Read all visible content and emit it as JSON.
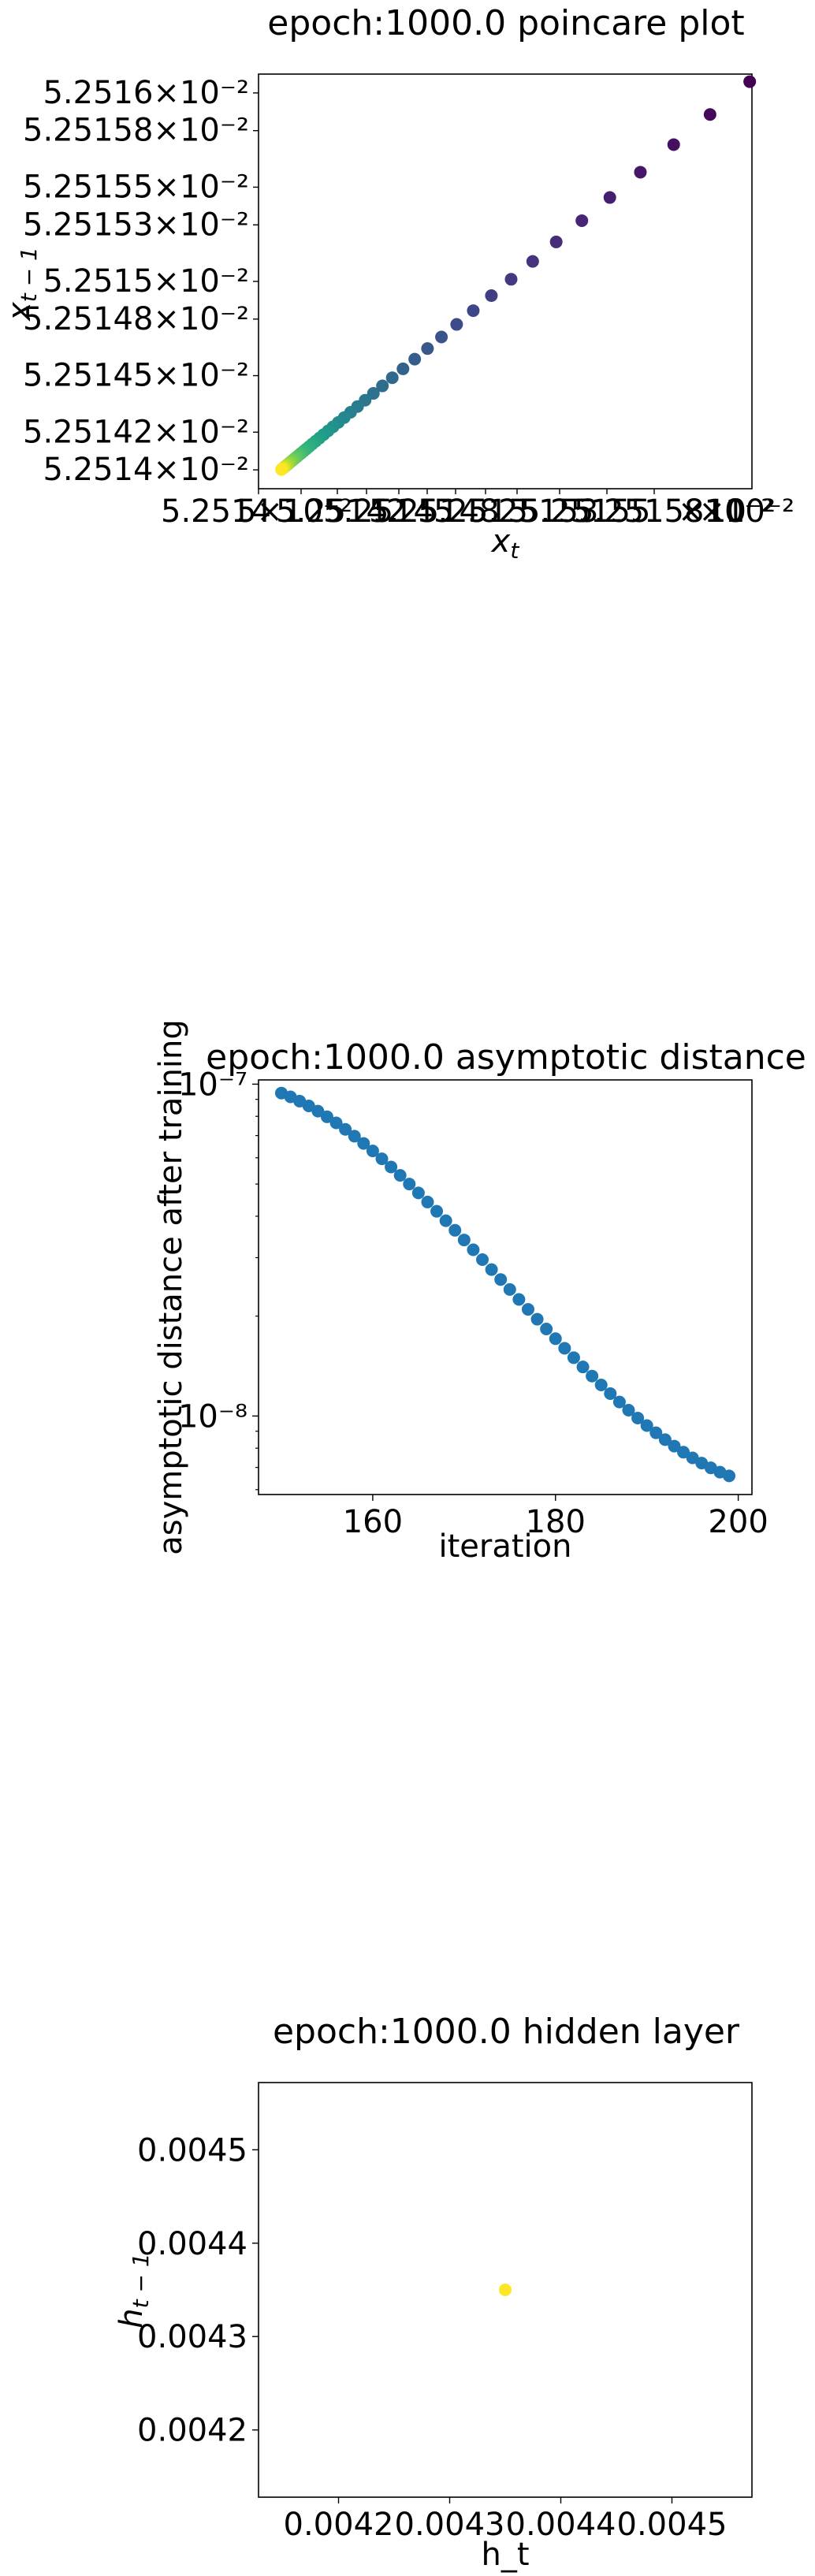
{
  "chart_data": [
    {
      "type": "scatter",
      "title": "epoch:1000.0 poincare plot",
      "xlabel": "x_t",
      "ylabel": "x_{t-1}",
      "scale": "log",
      "colormap": "viridis",
      "y_tick_labels": [
        "5.2516×10⁻²",
        "5.25158×10⁻²",
        "5.25155×10⁻²",
        "5.25153×10⁻²",
        "5.2515×10⁻²",
        "5.25148×10⁻²",
        "5.25145×10⁻²",
        "5.25142×10⁻²",
        "5.2514×10⁻²"
      ],
      "y_ticks": [
        0.052516,
        0.0525158,
        0.0525155,
        0.0525153,
        0.052515,
        0.0525148,
        0.0525145,
        0.0525142,
        0.052514
      ],
      "x_tick_labels_overlapping": "5.2514×10⁻² … 5.2516×10⁻²",
      "x_tick_suffix": "×10⁻²",
      "xlim": [
        0.0525139,
        0.0525161
      ],
      "ylim": [
        0.0525139,
        0.0525161
      ],
      "first_point": [
        0.05251609,
        0.05251606
      ],
      "step_ratio": 0.9166,
      "n_points": 49,
      "limit_point": [
        0.05251397,
        0.05251397
      ]
    },
    {
      "type": "scatter",
      "title": "epoch:1000.0 asymptotic distance",
      "xlabel": "iteration",
      "ylabel": "asymptotic distance after training",
      "yscale": "log",
      "color": "#1f77b4",
      "xlim": [
        147.5,
        201.5
      ],
      "ylim": [
        5.8e-09,
        1.03e-07
      ],
      "x_ticks": [
        160,
        180,
        200
      ],
      "y_ticks": [
        {
          "value": 1e-08,
          "label": "10⁻⁸"
        },
        {
          "value": 1e-07,
          "label": "10⁻⁷"
        }
      ],
      "x_start": 150,
      "x_end": 199,
      "y_start": 9.4e-08,
      "y_end": 6.6e-09
    },
    {
      "type": "scatter",
      "title": "epoch:1000.0 hidden layer",
      "xlabel": "h_t",
      "ylabel": "h_{t-1}",
      "xlim": [
        0.004128,
        0.004572
      ],
      "ylim": [
        0.004128,
        0.004572
      ],
      "x_ticks": [
        0.0042,
        0.0043,
        0.0044,
        0.0045
      ],
      "x_tick_labels": [
        "0.0042",
        "0.0043",
        "0.0044",
        "0.0045"
      ],
      "y_ticks": [
        0.0042,
        0.0043,
        0.0044,
        0.0045
      ],
      "y_tick_labels": [
        "0.0042",
        "0.0043",
        "0.0044",
        "0.0045"
      ],
      "points": [
        [
          0.00435,
          0.00435
        ]
      ],
      "point_color": "#fde725"
    }
  ]
}
